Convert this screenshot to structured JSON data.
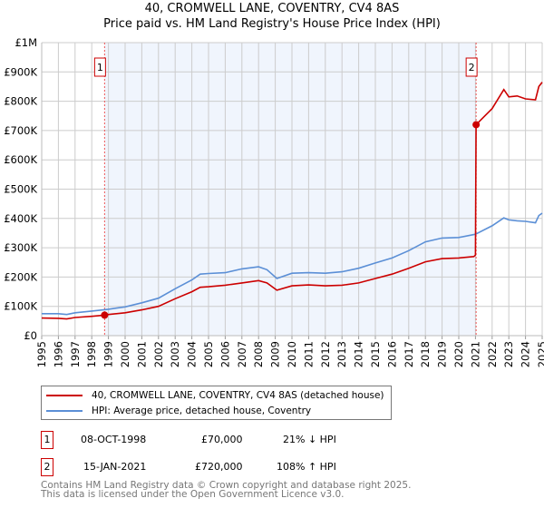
{
  "chart_data": {
    "type": "line",
    "title": "40, CROMWELL LANE, COVENTRY, CV4 8AS",
    "subtitle": "Price paid vs. HM Land Registry's House Price Index (HPI)",
    "xlim": [
      1995,
      2025
    ],
    "ylim": [
      0,
      1000000
    ],
    "x_ticks": [
      "1995",
      "1996",
      "1997",
      "1998",
      "1999",
      "2000",
      "2001",
      "2002",
      "2003",
      "2004",
      "2005",
      "2006",
      "2007",
      "2008",
      "2009",
      "2010",
      "2011",
      "2012",
      "2013",
      "2014",
      "2015",
      "2016",
      "2017",
      "2018",
      "2019",
      "2020",
      "2021",
      "2022",
      "2023",
      "2024",
      "2025"
    ],
    "y_ticks": [
      {
        "v": 0,
        "label": "£0"
      },
      {
        "v": 100000,
        "label": "£100K"
      },
      {
        "v": 200000,
        "label": "£200K"
      },
      {
        "v": 300000,
        "label": "£300K"
      },
      {
        "v": 400000,
        "label": "£400K"
      },
      {
        "v": 500000,
        "label": "£500K"
      },
      {
        "v": 600000,
        "label": "£600K"
      },
      {
        "v": 700000,
        "label": "£700K"
      },
      {
        "v": 800000,
        "label": "£800K"
      },
      {
        "v": 900000,
        "label": "£900K"
      },
      {
        "v": 1000000,
        "label": "£1M"
      }
    ],
    "grid": true,
    "series": [
      {
        "name": "40, CROMWELL LANE, COVENTRY, CV4 8AS (detached house)",
        "color": "#cc0000",
        "x": [
          1995,
          1996,
          1996.5,
          1997,
          1998,
          1998.77,
          1999,
          2000,
          2001,
          2002,
          2003,
          2004,
          2004.5,
          2005,
          2006,
          2007,
          2008,
          2008.5,
          2009.1,
          2010,
          2011,
          2012,
          2013,
          2014,
          2015,
          2016,
          2017,
          2018,
          2019,
          2020,
          2020.9,
          2021.0,
          2021.04,
          2022,
          2022.7,
          2023,
          2023.5,
          2024,
          2024.6,
          2024.8,
          2025
        ],
        "y": [
          60000,
          59000,
          57000,
          62000,
          66000,
          70000,
          72000,
          78000,
          88000,
          100000,
          126000,
          150000,
          165000,
          167000,
          172000,
          180000,
          188000,
          180000,
          155000,
          170000,
          173000,
          170000,
          172000,
          180000,
          195000,
          210000,
          230000,
          252000,
          263000,
          265000,
          270000,
          275000,
          720000,
          775000,
          840000,
          815000,
          818000,
          808000,
          805000,
          850000,
          865000
        ]
      },
      {
        "name": "HPI: Average price, detached house, Coventry",
        "color": "#5b8fd6",
        "x": [
          1995,
          1996,
          1996.5,
          1997,
          1998,
          1999,
          2000,
          2001,
          2002,
          2003,
          2004,
          2004.5,
          2005,
          2006,
          2007,
          2008,
          2008.5,
          2009.1,
          2010,
          2011,
          2012,
          2013,
          2014,
          2015,
          2016,
          2017,
          2018,
          2019,
          2020,
          2021,
          2022,
          2022.7,
          2023,
          2023.5,
          2024,
          2024.6,
          2024.8,
          2025
        ],
        "y": [
          75000,
          75000,
          72000,
          78000,
          84000,
          90000,
          98000,
          112000,
          128000,
          160000,
          190000,
          210000,
          212000,
          215000,
          228000,
          235000,
          225000,
          195000,
          213000,
          215000,
          213000,
          218000,
          230000,
          248000,
          265000,
          290000,
          320000,
          333000,
          335000,
          346000,
          375000,
          402000,
          395000,
          392000,
          390000,
          385000,
          410000,
          418000
        ]
      }
    ],
    "sales": [
      {
        "id": "1",
        "x": 1998.77,
        "price": 70000,
        "date": "08-OCT-1998",
        "price_label": "£70,000",
        "hpi_label": "21% ↓ HPI"
      },
      {
        "id": "2",
        "x": 2021.04,
        "price": 720000,
        "date": "15-JAN-2021",
        "price_label": "£720,000",
        "hpi_label": "108% ↑ HPI"
      }
    ],
    "legend_placement": "below"
  },
  "footer": {
    "line1": "Contains HM Land Registry data © Crown copyright and database right 2025.",
    "line2": "This data is licensed under the Open Government Licence v3.0."
  }
}
